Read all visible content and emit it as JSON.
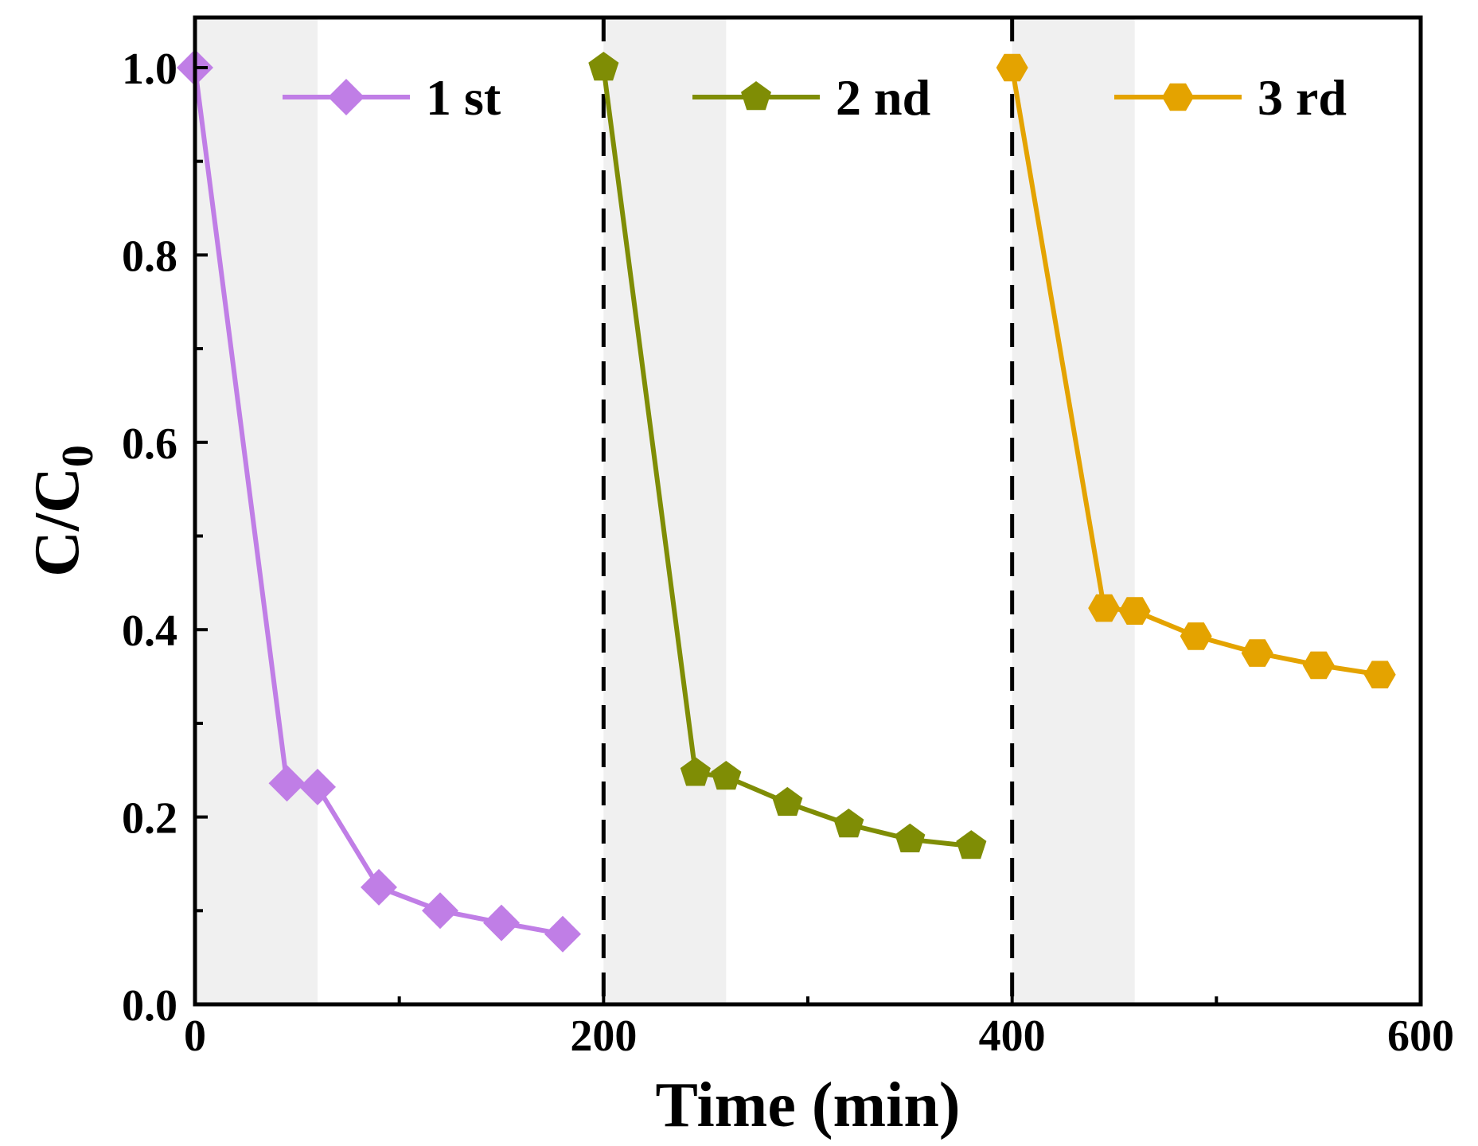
{
  "chart_data": {
    "type": "line",
    "xlabel": "Time (min)",
    "ylabel_main": "C/C",
    "ylabel_sub": "0",
    "xlim": [
      0,
      600
    ],
    "ylim": [
      0,
      1.0
    ],
    "xticks": [
      "0",
      "200",
      "400",
      "600"
    ],
    "yticks": [
      "0.0",
      "0.2",
      "0.4",
      "0.6",
      "0.8",
      "1.0"
    ],
    "dark_shaded_ranges": [
      [
        0,
        60
      ],
      [
        200,
        260
      ],
      [
        400,
        460
      ]
    ],
    "cycle_dividers": [
      200,
      400
    ],
    "series": [
      {
        "name": "1 st",
        "marker": "diamond",
        "color": "#c07ee6",
        "x": [
          0,
          45,
          60,
          90,
          120,
          150,
          180
        ],
        "y": [
          1.0,
          0.236,
          0.232,
          0.125,
          0.1,
          0.087,
          0.075
        ]
      },
      {
        "name": "2 nd",
        "marker": "pentagon",
        "color": "#7f8d05",
        "x": [
          200,
          245,
          260,
          290,
          320,
          350,
          380
        ],
        "y": [
          1.0,
          0.247,
          0.243,
          0.215,
          0.192,
          0.176,
          0.169
        ]
      },
      {
        "name": "3 rd",
        "marker": "hexagon",
        "color": "#e4a300",
        "x": [
          400,
          445,
          460,
          490,
          520,
          550,
          580
        ],
        "y": [
          1.0,
          0.423,
          0.42,
          0.393,
          0.375,
          0.362,
          0.352
        ]
      }
    ]
  }
}
